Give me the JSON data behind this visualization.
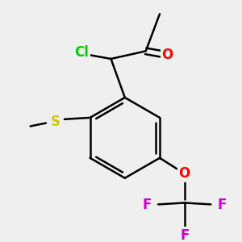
{
  "background_color": "#efefef",
  "bond_color": "#000000",
  "bond_width": 1.8,
  "atoms": {
    "Cl": {
      "color": "#00cc00",
      "fontsize": 12
    },
    "O": {
      "color": "#ff0000",
      "fontsize": 12
    },
    "S": {
      "color": "#cccc00",
      "fontsize": 12
    },
    "F": {
      "color": "#cc00cc",
      "fontsize": 12
    }
  },
  "fig_size": [
    3.0,
    3.0
  ],
  "dpi": 100
}
